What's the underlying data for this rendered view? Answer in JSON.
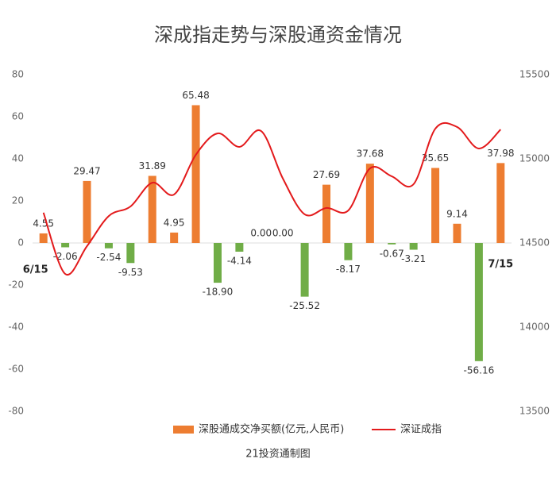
{
  "chart_data": {
    "type": "bar_line",
    "title": "深成指走势与深股通资金情况",
    "subtitle": "21投资通制图",
    "categories": [
      "6/15",
      null,
      null,
      null,
      null,
      null,
      null,
      null,
      null,
      null,
      null,
      null,
      null,
      null,
      null,
      null,
      null,
      null,
      null,
      null,
      null,
      "7/15"
    ],
    "series": [
      {
        "name": "深股通成交净买额(亿元,人民币)",
        "type": "bar",
        "axis": "y",
        "color": "#ed7d31",
        "negative_color": "#70ad47",
        "values": [
          4.55,
          -2.06,
          29.47,
          -2.54,
          -9.53,
          31.89,
          4.95,
          65.48,
          -18.9,
          -4.14,
          0,
          0,
          -25.52,
          27.69,
          -8.17,
          37.68,
          -0.67,
          -3.21,
          35.65,
          9.14,
          -56.16,
          37.98
        ],
        "value_labels": [
          "4.55",
          "-2.06",
          "29.47",
          "-2.54",
          "-9.53",
          "31.89",
          "4.95",
          "65.48",
          "-18.90",
          "-4.14",
          "0.00",
          "0.00",
          "-25.52",
          "27.69",
          "-8.17",
          "37.68",
          "-0.67",
          "-3.21",
          "35.65",
          "9.14",
          "-56.16",
          "37.98"
        ]
      },
      {
        "name": "深证成指",
        "type": "line",
        "axis": "y2",
        "color": "#e31a1c",
        "values": [
          14680,
          14316,
          14481,
          14660,
          14717,
          14858,
          14788,
          15024,
          15151,
          15071,
          15165,
          14882,
          14670,
          14708,
          14693,
          14943,
          14896,
          14849,
          15179,
          15189,
          15061,
          15174
        ]
      }
    ],
    "ylim": [
      -80,
      80
    ],
    "yticks": [
      80,
      60,
      40,
      20,
      0,
      -20,
      -40,
      -60,
      -80
    ],
    "y2lim": [
      13500,
      15500
    ],
    "y2ticks": [
      15500,
      15000,
      14500,
      14000,
      13500
    ],
    "grid": false,
    "legend": "bottom"
  }
}
